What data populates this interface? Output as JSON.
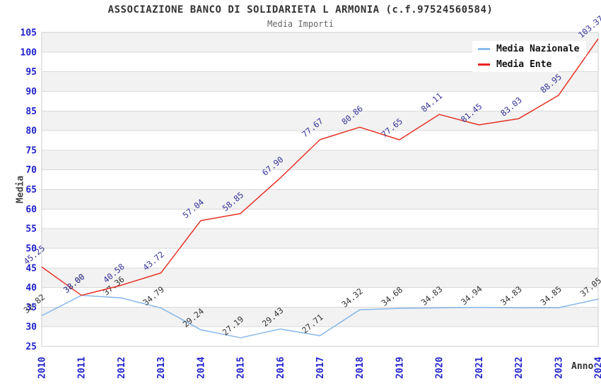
{
  "title": "ASSOCIAZIONE BANCO DI SOLIDARIETA L ARMONIA (c.f.97524560584)",
  "subtitle": "Media Importi",
  "colors": {
    "axis_tick": "#2222cc",
    "grid_line": "#d9d9d9",
    "plot_border": "#cccccc",
    "band_gray": "#f2f2f2",
    "band_white": "#ffffff",
    "title_text": "#333333",
    "subtitle_text": "#666666"
  },
  "legend": {
    "items": [
      {
        "label": "Media Nazionale",
        "color": "#88bbee"
      },
      {
        "label": "Media Ente",
        "color": "#ee2222"
      }
    ]
  },
  "chart_data": {
    "type": "line",
    "title": "ASSOCIAZIONE BANCO DI SOLIDARIETA L ARMONIA (c.f.97524560584)",
    "subtitle": "Media Importi",
    "xlabel": "Anno",
    "ylabel": "Media",
    "x": [
      2010,
      2011,
      2012,
      2013,
      2014,
      2015,
      2016,
      2017,
      2018,
      2019,
      2020,
      2021,
      2022,
      2023,
      2024
    ],
    "series": [
      {
        "name": "Media Nazionale",
        "line_color": "#86b7e8",
        "label_color": "#333333",
        "values": [
          32.82,
          38.0,
          37.36,
          34.79,
          29.24,
          27.19,
          29.43,
          27.71,
          34.32,
          34.68,
          34.83,
          34.94,
          34.83,
          34.85,
          37.05
        ]
      },
      {
        "name": "Media Ente",
        "line_color": "#e53227",
        "label_color": "#333399",
        "values": [
          45.25,
          38.0,
          40.58,
          43.72,
          57.04,
          58.85,
          67.9,
          77.67,
          80.86,
          77.65,
          84.11,
          81.45,
          83.03,
          88.95,
          103.37
        ]
      }
    ],
    "ylim": [
      25,
      105
    ],
    "yticks": [
      25,
      30,
      35,
      40,
      45,
      50,
      55,
      60,
      65,
      70,
      75,
      80,
      85,
      90,
      95,
      100,
      105
    ],
    "grid": true,
    "bands": "alternating 5-unit horizontal stripes, gray on top band",
    "legend_position": "top-right"
  }
}
